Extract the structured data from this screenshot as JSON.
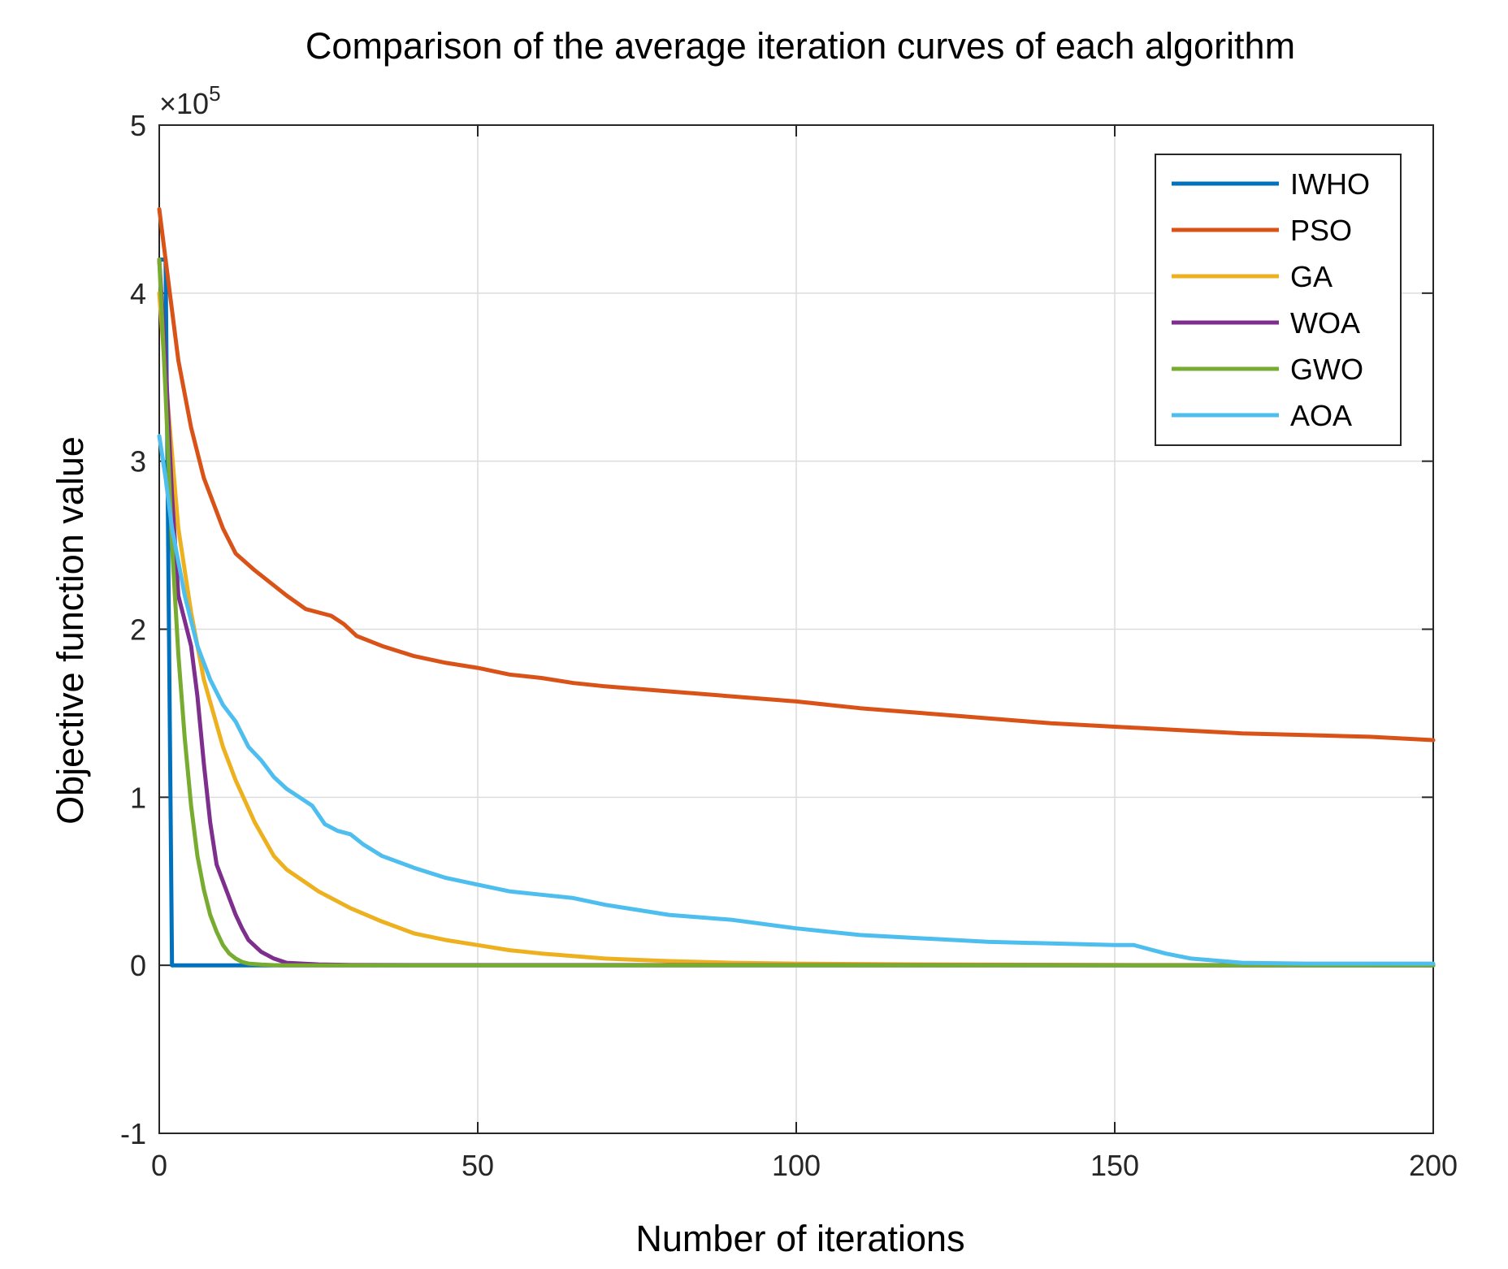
{
  "chart_data": {
    "type": "line",
    "title": "Comparison of the average iteration curves of each algorithm",
    "xlabel": "Number of iterations",
    "ylabel": "Objective function value",
    "xlim": [
      0,
      200
    ],
    "ylim": [
      -1,
      5
    ],
    "y_multiplier": "×10",
    "y_multiplier_exp": "5",
    "xticks": [
      0,
      50,
      100,
      150,
      200
    ],
    "xtick_labels": [
      "0",
      "50",
      "100",
      "150",
      "200"
    ],
    "yticks": [
      -1,
      0,
      1,
      2,
      3,
      4,
      5
    ],
    "ytick_labels": [
      "-1",
      "0",
      "1",
      "2",
      "3",
      "4",
      "5"
    ],
    "grid": true,
    "legend_position": "top-right",
    "series": [
      {
        "name": "IWHO",
        "color": "#0072BD",
        "x": [
          0,
          1,
          2,
          200
        ],
        "y": [
          4.2,
          4.2,
          0,
          0
        ]
      },
      {
        "name": "PSO",
        "color": "#D95319",
        "x": [
          0,
          1,
          3,
          5,
          7,
          10,
          12,
          15,
          20,
          23,
          27,
          29,
          31,
          35,
          40,
          45,
          50,
          55,
          60,
          65,
          70,
          80,
          90,
          100,
          110,
          120,
          130,
          140,
          150,
          160,
          170,
          180,
          190,
          200
        ],
        "y": [
          4.5,
          4.2,
          3.6,
          3.2,
          2.9,
          2.6,
          2.45,
          2.35,
          2.2,
          2.12,
          2.08,
          2.03,
          1.96,
          1.9,
          1.84,
          1.8,
          1.77,
          1.73,
          1.71,
          1.68,
          1.66,
          1.63,
          1.6,
          1.57,
          1.53,
          1.5,
          1.47,
          1.44,
          1.42,
          1.4,
          1.38,
          1.37,
          1.36,
          1.34
        ]
      },
      {
        "name": "GA",
        "color": "#EDB120",
        "x": [
          0,
          1,
          3,
          5,
          7,
          10,
          12,
          15,
          18,
          20,
          25,
          30,
          35,
          40,
          45,
          50,
          55,
          60,
          70,
          80,
          90,
          100,
          120,
          150,
          200
        ],
        "y": [
          4.0,
          3.5,
          2.6,
          2.1,
          1.7,
          1.3,
          1.1,
          0.85,
          0.65,
          0.57,
          0.44,
          0.34,
          0.26,
          0.19,
          0.15,
          0.12,
          0.09,
          0.07,
          0.04,
          0.025,
          0.015,
          0.01,
          0.005,
          0.002,
          0.001
        ]
      },
      {
        "name": "WOA",
        "color": "#7E2F8E",
        "x": [
          0,
          1,
          2,
          3,
          4,
          5,
          6,
          7,
          8,
          9,
          10,
          11,
          12,
          13,
          14,
          16,
          18,
          20,
          25,
          30,
          200
        ],
        "y": [
          4.2,
          3.6,
          2.8,
          2.2,
          2.05,
          1.9,
          1.6,
          1.2,
          0.85,
          0.6,
          0.5,
          0.4,
          0.3,
          0.22,
          0.15,
          0.08,
          0.04,
          0.015,
          0.005,
          0.002,
          0.0
        ]
      },
      {
        "name": "GWO",
        "color": "#77AC30",
        "x": [
          0,
          1,
          2,
          3,
          4,
          5,
          6,
          7,
          8,
          9,
          10,
          11,
          12,
          13,
          14,
          16,
          18,
          20,
          200
        ],
        "y": [
          4.2,
          3.4,
          2.5,
          1.85,
          1.35,
          0.95,
          0.65,
          0.45,
          0.3,
          0.2,
          0.12,
          0.07,
          0.04,
          0.02,
          0.01,
          0.004,
          0.001,
          0.0,
          0.0
        ]
      },
      {
        "name": "AOA",
        "color": "#4DBEEE",
        "x": [
          0,
          1,
          2,
          4,
          6,
          8,
          10,
          12,
          14,
          16,
          18,
          20,
          22,
          24,
          26,
          28,
          30,
          32,
          35,
          40,
          45,
          50,
          55,
          60,
          65,
          70,
          75,
          80,
          90,
          100,
          105,
          110,
          120,
          130,
          140,
          150,
          153,
          155,
          158,
          162,
          170,
          180,
          190,
          200
        ],
        "y": [
          3.15,
          2.9,
          2.6,
          2.2,
          1.9,
          1.7,
          1.55,
          1.45,
          1.3,
          1.22,
          1.12,
          1.05,
          1.0,
          0.95,
          0.84,
          0.8,
          0.78,
          0.72,
          0.65,
          0.58,
          0.52,
          0.48,
          0.44,
          0.42,
          0.4,
          0.36,
          0.33,
          0.3,
          0.27,
          0.22,
          0.2,
          0.18,
          0.16,
          0.14,
          0.13,
          0.12,
          0.12,
          0.1,
          0.07,
          0.04,
          0.015,
          0.01,
          0.01,
          0.01
        ]
      }
    ]
  }
}
